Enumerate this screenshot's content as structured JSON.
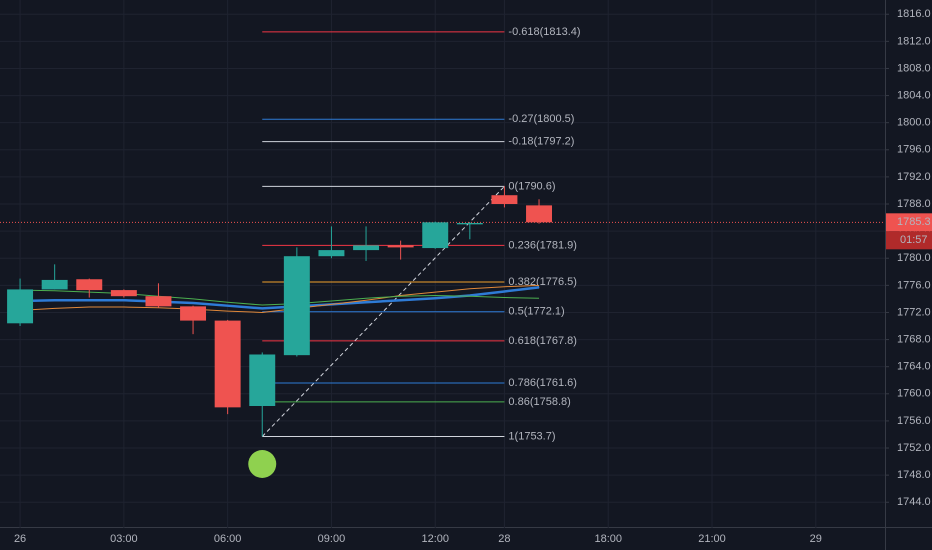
{
  "chart_data": {
    "type": "candlestick",
    "x": [
      0,
      1,
      2,
      3,
      4,
      5,
      6,
      7,
      8,
      9,
      10,
      11,
      12,
      13,
      14,
      15
    ],
    "xlim": [
      -0.58,
      25
    ],
    "xticks": [
      {
        "value": 0,
        "label": "26"
      },
      {
        "value": 3,
        "label": "03:00"
      },
      {
        "value": 6,
        "label": "06:00"
      },
      {
        "value": 9,
        "label": "09:00"
      },
      {
        "value": 12,
        "label": "12:00"
      },
      {
        "value": 14,
        "label": "28"
      },
      {
        "value": 17,
        "label": "18:00"
      },
      {
        "value": 20,
        "label": "21:00"
      },
      {
        "value": 23,
        "label": "29"
      }
    ],
    "ylim": [
      1740.2,
      1818.1
    ],
    "yticks": [
      {
        "value": 1744,
        "label": "1744.0"
      },
      {
        "value": 1748,
        "label": "1748.0"
      },
      {
        "value": 1752,
        "label": "1752.0"
      },
      {
        "value": 1756,
        "label": "1756.0"
      },
      {
        "value": 1760,
        "label": "1760.0"
      },
      {
        "value": 1764,
        "label": "1764.0"
      },
      {
        "value": 1768,
        "label": "1768.0"
      },
      {
        "value": 1772,
        "label": "1772.0"
      },
      {
        "value": 1776,
        "label": "1776.0"
      },
      {
        "value": 1780,
        "label": "1780.0"
      },
      {
        "value": 1784,
        "label": "1784.0"
      },
      {
        "value": 1788,
        "label": "1788.0"
      },
      {
        "value": 1792,
        "label": "1792.0"
      },
      {
        "value": 1796,
        "label": "1796.0"
      },
      {
        "value": 1800,
        "label": "1800.0"
      },
      {
        "value": 1804,
        "label": "1804.0"
      },
      {
        "value": 1808,
        "label": "1808.0"
      },
      {
        "value": 1812,
        "label": "1812.0"
      },
      {
        "value": 1816,
        "label": "1816.0"
      }
    ],
    "grid": true,
    "up_color": "#26a69a",
    "down_color": "#ef5350",
    "open": [
      1770.4,
      1775.4,
      1776.9,
      1775.3,
      1774.4,
      1772.9,
      1770.8,
      1758.2,
      1765.7,
      1780.3,
      1781.2,
      1781.9,
      1781.5,
      1785.0,
      1789.3,
      1787.8
    ],
    "high": [
      1777.0,
      1779.1,
      1777.0,
      1775.4,
      1776.3,
      1773.0,
      1770.9,
      1766.1,
      1781.6,
      1784.7,
      1784.7,
      1782.6,
      1785.4,
      1785.3,
      1790.6,
      1788.7
    ],
    "low": [
      1770.0,
      1775.4,
      1774.2,
      1774.2,
      1772.7,
      1768.8,
      1757.0,
      1753.7,
      1765.5,
      1780.0,
      1779.6,
      1779.8,
      1781.4,
      1782.8,
      1787.5,
      1785.1
    ],
    "close": [
      1775.4,
      1776.8,
      1775.3,
      1774.4,
      1772.9,
      1770.8,
      1758.0,
      1765.8,
      1780.3,
      1781.2,
      1781.9,
      1781.6,
      1785.3,
      1785.2,
      1788.0,
      1785.3
    ],
    "series": [
      {
        "color": "#2e7bd6",
        "values": [
          1773.7,
          1773.8,
          1773.8,
          1773.8,
          1773.6,
          1773.4,
          1773.0,
          1772.6,
          1772.9,
          1773.2,
          1773.5,
          1773.8,
          1774.1,
          1774.5,
          1775.1,
          1775.7
        ]
      },
      {
        "color": "#e0883a",
        "values": [
          1772.3,
          1772.6,
          1772.8,
          1772.8,
          1772.7,
          1772.5,
          1772.2,
          1772.0,
          1772.6,
          1773.2,
          1773.8,
          1774.5,
          1775.0,
          1775.5,
          1775.8,
          1776.0
        ]
      },
      {
        "color": "#4caf50",
        "values": [
          1775.3,
          1775.2,
          1775.0,
          1774.8,
          1774.4,
          1774.0,
          1773.5,
          1773.1,
          1773.3,
          1773.7,
          1774.1,
          1774.4,
          1774.5,
          1774.4,
          1774.2,
          1774.1
        ]
      }
    ],
    "fib_levels": [
      {
        "label": "-0.618(1813.4)",
        "value": 1813.4,
        "color": "#f23645"
      },
      {
        "label": "-0.27(1800.5)",
        "value": 1800.5,
        "color": "#2e7bd6"
      },
      {
        "label": "-0.18(1797.2)",
        "value": 1797.2,
        "color": "#d1d4dc"
      },
      {
        "label": "0(1790.6)",
        "value": 1790.6,
        "color": "#d1d4dc"
      },
      {
        "label": "0.236(1781.9)",
        "value": 1781.9,
        "color": "#f23645"
      },
      {
        "label": "0.382(1776.5)",
        "value": 1776.5,
        "color": "#f0a02c"
      },
      {
        "label": "0.5(1772.1)",
        "value": 1772.1,
        "color": "#2e7bd6"
      },
      {
        "label": "0.618(1767.8)",
        "value": 1767.8,
        "color": "#f23645"
      },
      {
        "label": "0.786(1761.6)",
        "value": 1761.6,
        "color": "#2e7bd6"
      },
      {
        "label": "0.86(1758.8)",
        "value": 1758.8,
        "color": "#4caf50"
      },
      {
        "label": "1(1753.7)",
        "value": 1753.7,
        "color": "#d1d4dc"
      }
    ],
    "fib_x": [
      7,
      14
    ],
    "last_price": 1785.3,
    "countdown": "01:57"
  }
}
